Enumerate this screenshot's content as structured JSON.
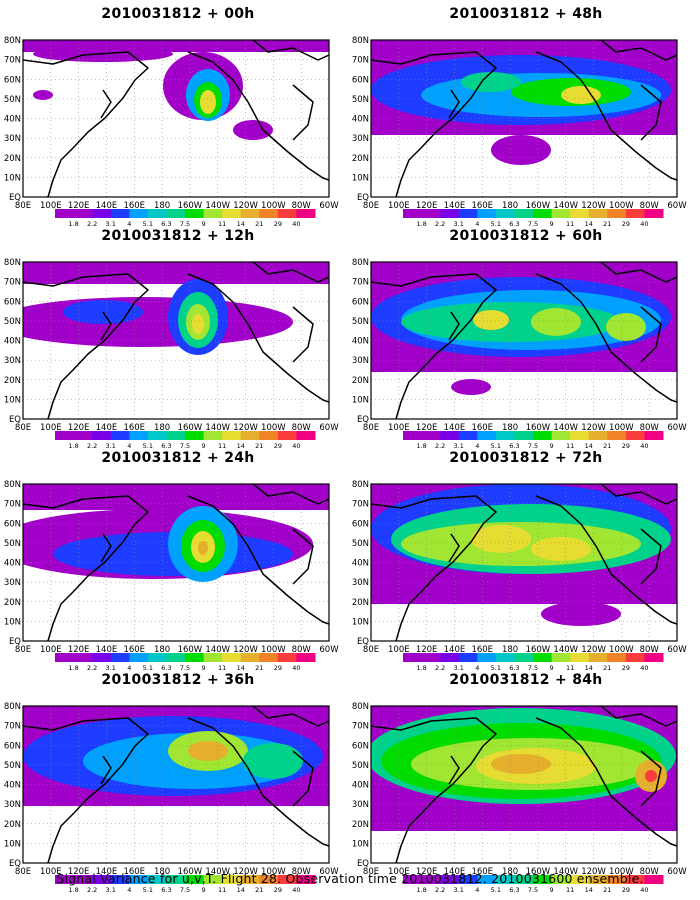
{
  "footer": "Signal Variance for u,v,T. Flight 28. Observation time 2010031812. 2010031600 ensemble.",
  "lat_labels": [
    "80N",
    "70N",
    "60N",
    "50N",
    "40N",
    "30N",
    "20N",
    "10N",
    "EQ"
  ],
  "lon_labels": [
    "80E",
    "100E",
    "120E",
    "140E",
    "160E",
    "180",
    "160W",
    "140W",
    "120W",
    "100W",
    "80W",
    "60W"
  ],
  "colorbar": {
    "labels": [
      "1.8",
      "2.2",
      "3.1",
      "4",
      "5.1",
      "6.3",
      "7.5",
      "9",
      "11",
      "14",
      "21",
      "29",
      "40"
    ],
    "colors": [
      "#a000c8",
      "#7a00e6",
      "#1e3cff",
      "#00a0ff",
      "#00c8c8",
      "#00d28c",
      "#00dc00",
      "#a0e632",
      "#e6dc32",
      "#e6af2d",
      "#f08228",
      "#fa3c3c",
      "#f00082"
    ]
  },
  "panels": [
    {
      "title": "2010031812 + 00h",
      "icon": "signal-variance-map-00h"
    },
    {
      "title": "2010031812 + 48h",
      "icon": "signal-variance-map-48h"
    },
    {
      "title": "2010031812 + 12h",
      "icon": "signal-variance-map-12h"
    },
    {
      "title": "2010031812 + 60h",
      "icon": "signal-variance-map-60h"
    },
    {
      "title": "2010031812 + 24h",
      "icon": "signal-variance-map-24h"
    },
    {
      "title": "2010031812 + 72h",
      "icon": "signal-variance-map-72h"
    },
    {
      "title": "2010031812 + 36h",
      "icon": "signal-variance-map-36h"
    },
    {
      "title": "2010031812 + 84h",
      "icon": "signal-variance-map-84h"
    }
  ]
}
